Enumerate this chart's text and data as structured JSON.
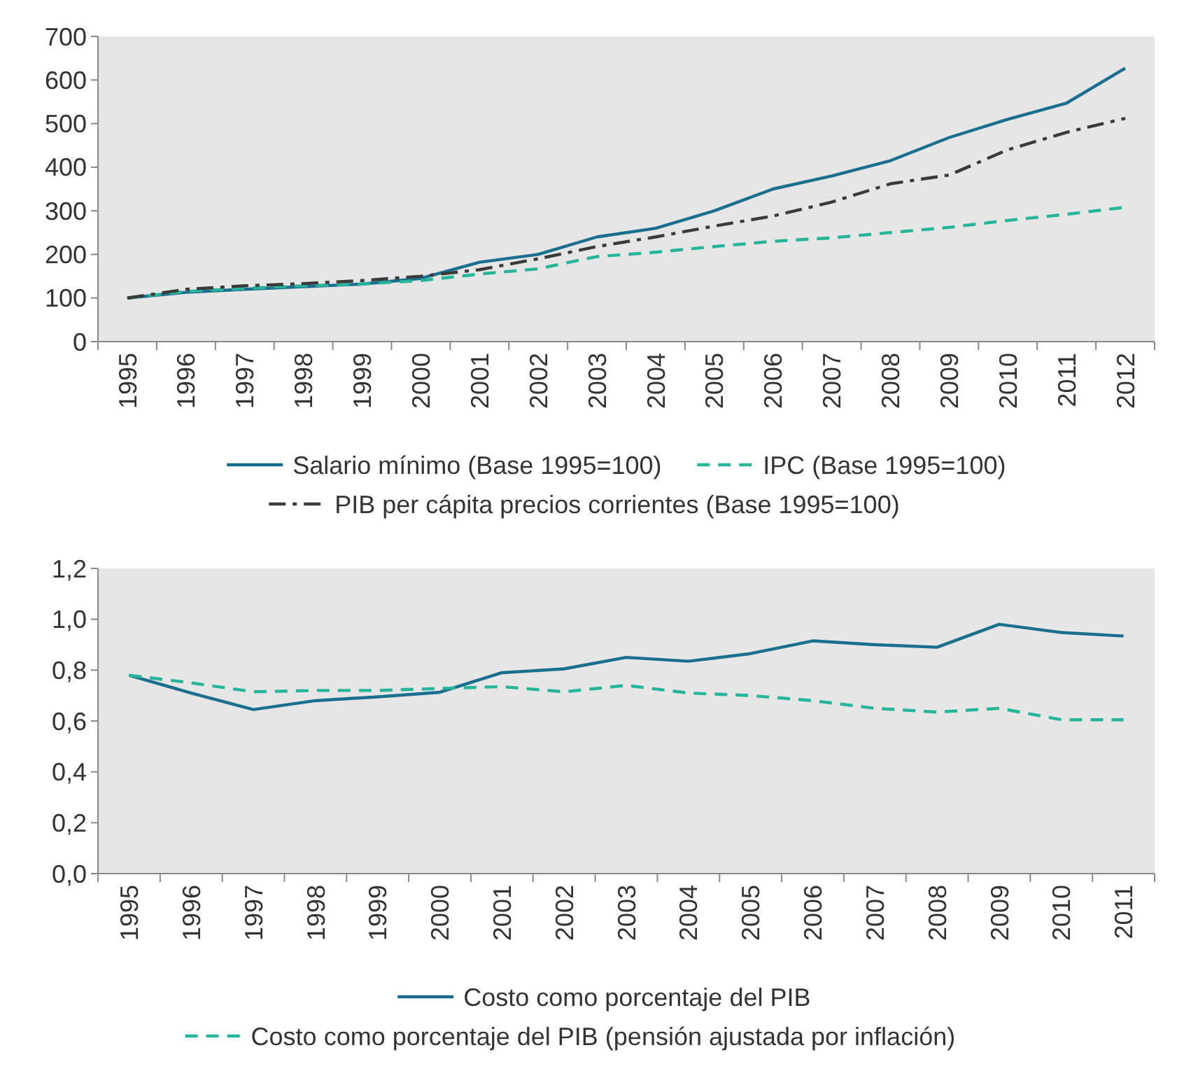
{
  "chart_data": [
    {
      "type": "line",
      "categories": [
        "1995",
        "1996",
        "1997",
        "1998",
        "1999",
        "2000",
        "2001",
        "2002",
        "2003",
        "2004",
        "2005",
        "2006",
        "2007",
        "2008",
        "2009",
        "2010",
        "2011",
        "2012"
      ],
      "ylim": [
        0,
        700
      ],
      "yticks": [
        0,
        100,
        200,
        300,
        400,
        500,
        600,
        700
      ],
      "grid": false,
      "legend": "bottom",
      "marker": "none",
      "series": [
        {
          "name": "Salario mínimo (Base 1995=100)",
          "color": "#1a6e8e",
          "line_style": "solid",
          "values": [
            100,
            113,
            120,
            126,
            132,
            145,
            182,
            200,
            240,
            260,
            300,
            350,
            380,
            415,
            468,
            510,
            547,
            627
          ]
        },
        {
          "name": "IPC (Base 1995=100)",
          "color": "#26b59b",
          "line_style": "dashed",
          "values": [
            100,
            115,
            122,
            128,
            132,
            140,
            155,
            167,
            195,
            205,
            218,
            230,
            238,
            250,
            262,
            278,
            292,
            308
          ]
        },
        {
          "name": "PIB per cápita precios corrientes (Base 1995=100)",
          "color": "#3a3a3a",
          "line_style": "dashdot",
          "values": [
            100,
            120,
            128,
            133,
            140,
            150,
            165,
            190,
            218,
            240,
            265,
            288,
            320,
            362,
            382,
            440,
            480,
            512
          ]
        }
      ]
    },
    {
      "type": "line",
      "categories": [
        "1995",
        "1996",
        "1997",
        "1998",
        "1999",
        "2000",
        "2001",
        "2002",
        "2003",
        "2004",
        "2005",
        "2006",
        "2007",
        "2008",
        "2009",
        "2010",
        "2011"
      ],
      "ylim": [
        0,
        1.2
      ],
      "yticks": [
        {
          "value": 0,
          "label": "0,0"
        },
        {
          "value": 0.2,
          "label": "0,2"
        },
        {
          "value": 0.4,
          "label": "0,4"
        },
        {
          "value": 0.6,
          "label": "0,6"
        },
        {
          "value": 0.8,
          "label": "0,8"
        },
        {
          "value": 1,
          "label": "1,0"
        },
        {
          "value": 1.2,
          "label": "1,2"
        }
      ],
      "grid": false,
      "legend": "bottom",
      "marker": "none",
      "series": [
        {
          "name": "Costo como porcentaje del PIB",
          "color": "#1a6e8e",
          "line_style": "solid",
          "values": [
            0.78,
            0.71,
            0.645,
            0.68,
            0.695,
            0.713,
            0.79,
            0.805,
            0.85,
            0.835,
            0.865,
            0.915,
            0.9,
            0.89,
            0.98,
            0.948,
            0.934
          ]
        },
        {
          "name": "Costo como porcentaje del PIB (pensión ajustada por inflación)",
          "color": "#26b59b",
          "line_style": "dashed",
          "values": [
            0.78,
            0.75,
            0.715,
            0.72,
            0.72,
            0.728,
            0.735,
            0.715,
            0.74,
            0.71,
            0.7,
            0.68,
            0.65,
            0.635,
            0.65,
            0.605,
            0.605
          ]
        }
      ]
    }
  ]
}
